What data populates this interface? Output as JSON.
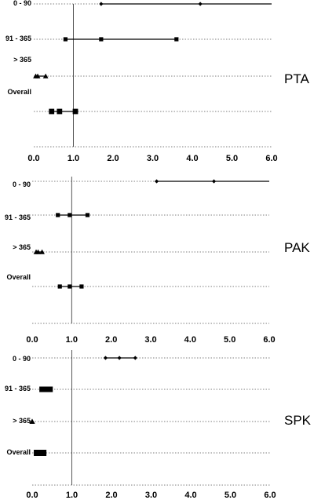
{
  "chart_data": [
    {
      "type": "scatter",
      "title": "PTA",
      "xlim": [
        0,
        6
      ],
      "xticks": [
        "0.0",
        "1.0",
        "2.0",
        "3.0",
        "4.0",
        "5.0",
        "6.0"
      ],
      "reference_line": 1.0,
      "grid": "dotted horizontal lines per row",
      "rows": [
        {
          "label": "0 - 90",
          "marker": "diamond",
          "estimate": 4.2,
          "lower": 1.7,
          "upper": 6.0
        },
        {
          "label": "91 - 365",
          "marker": "square",
          "estimate": 1.7,
          "lower": 0.8,
          "upper": 3.6
        },
        {
          "label": "> 365",
          "marker": "triangle",
          "estimate": 0.1,
          "lower": 0.05,
          "upper": 0.3
        },
        {
          "label": "Overall",
          "marker": "square",
          "estimate": 0.65,
          "lower": 0.45,
          "upper": 1.05
        }
      ]
    },
    {
      "type": "scatter",
      "title": "PAK",
      "xlim": [
        0,
        6
      ],
      "xticks": [
        "0.0",
        "1.0",
        "2.0",
        "3.0",
        "4.0",
        "5.0",
        "6.0"
      ],
      "reference_line": 1.0,
      "grid": "dotted horizontal lines per row",
      "rows": [
        {
          "label": "0 - 90",
          "marker": "diamond",
          "estimate": 4.6,
          "lower": 3.15,
          "upper": 6.0
        },
        {
          "label": "91 - 365",
          "marker": "square",
          "estimate": 0.95,
          "lower": 0.65,
          "upper": 1.4
        },
        {
          "label": "> 365",
          "marker": "triangle",
          "estimate": 0.15,
          "lower": 0.1,
          "upper": 0.25
        },
        {
          "label": "Overall",
          "marker": "square",
          "estimate": 0.95,
          "lower": 0.7,
          "upper": 1.25
        }
      ]
    },
    {
      "type": "scatter",
      "title": "SPK",
      "xlim": [
        0,
        6
      ],
      "xticks": [
        "0.0",
        "1.0",
        "2.0",
        "3.0",
        "4.0",
        "5.0",
        "6.0"
      ],
      "reference_line": 1.0,
      "grid": "dotted horizontal lines per row",
      "rows": [
        {
          "label": "0 - 90",
          "marker": "diamond",
          "estimate": 2.2,
          "lower": 1.85,
          "upper": 2.6
        },
        {
          "label": "91 - 365",
          "marker": "square",
          "estimate": 0.35,
          "lower": 0.25,
          "upper": 0.45
        },
        {
          "label": "> 365",
          "marker": "triangle",
          "estimate": 0.0,
          "lower": 0.0,
          "upper": 0.0
        },
        {
          "label": "Overall",
          "marker": "square",
          "estimate": 0.2,
          "lower": 0.12,
          "upper": 0.28
        }
      ]
    }
  ]
}
